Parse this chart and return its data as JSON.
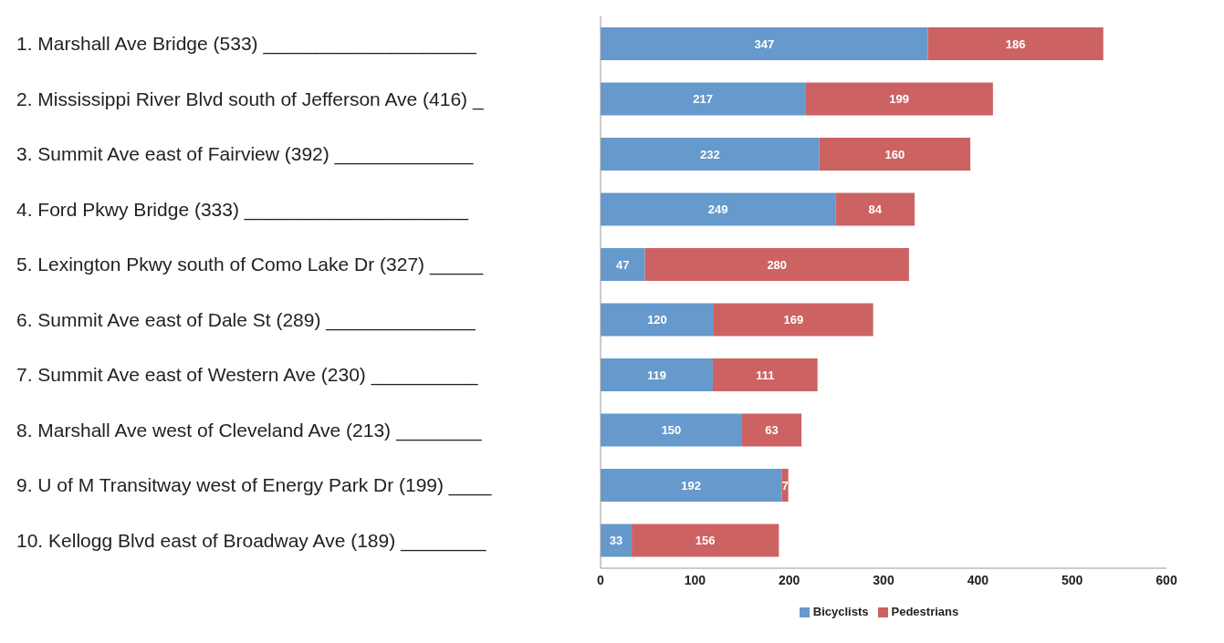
{
  "chart_data": {
    "type": "bar",
    "orientation": "horizontal",
    "stacked": true,
    "data_labels": true,
    "legend": "bottom",
    "categories": [
      "1. Marshall Ave Bridge (533) ____________________",
      "2. Mississippi River Blvd south of Jefferson Ave (416) _",
      "3. Summit Ave east of Fairview (392) _____________",
      "4. Ford Pkwy Bridge (333) _____________________",
      "5. Lexington Pkwy south of Como Lake Dr (327) _____",
      "6. Summit Ave east of Dale St (289) ______________",
      "7. Summit Ave east of Western Ave (230) __________",
      "8. Marshall Ave west of Cleveland Ave (213) ________",
      "9. U of M Transitway west of Energy Park Dr (199) ____",
      "10. Kellogg Blvd east of Broadway Ave (189) ________"
    ],
    "series": [
      {
        "name": "Bicyclists",
        "color": "#6699cc",
        "values": [
          347,
          217,
          232,
          249,
          47,
          120,
          119,
          150,
          192,
          33
        ]
      },
      {
        "name": "Pedestrians",
        "color": "#cc6262",
        "values": [
          186,
          199,
          160,
          84,
          280,
          169,
          111,
          63,
          7,
          156
        ]
      }
    ],
    "xlim": [
      0,
      600
    ],
    "xticks": [
      0,
      100,
      200,
      300,
      400,
      500,
      600
    ]
  }
}
